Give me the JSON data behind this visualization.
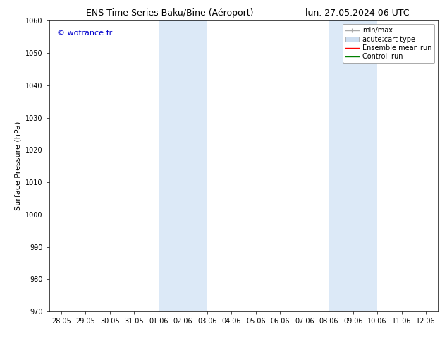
{
  "title_left": "ENS Time Series Baku/Bine (Aéroport)",
  "title_right": "lun. 27.05.2024 06 UTC",
  "ylabel": "Surface Pressure (hPa)",
  "ylim": [
    970,
    1060
  ],
  "yticks": [
    970,
    980,
    990,
    1000,
    1010,
    1020,
    1030,
    1040,
    1050,
    1060
  ],
  "xtick_labels": [
    "28.05",
    "29.05",
    "30.05",
    "31.05",
    "01.06",
    "02.06",
    "03.06",
    "04.06",
    "05.06",
    "06.06",
    "07.06",
    "08.06",
    "09.06",
    "10.06",
    "11.06",
    "12.06"
  ],
  "shaded_regions": [
    {
      "x_start": "01.06",
      "x_end": "03.06",
      "color": "#dce9f7"
    },
    {
      "x_start": "08.06",
      "x_end": "10.06",
      "color": "#dce9f7"
    }
  ],
  "watermark": "© wofrance.fr",
  "watermark_color": "#0000cc",
  "legend_entries": [
    {
      "label": "min/max",
      "color": "#aaaaaa",
      "lw": 1.0,
      "style": "line_with_caps"
    },
    {
      "label": "acute;cart type",
      "color": "#ccddf0",
      "lw": 6,
      "style": "block"
    },
    {
      "label": "Ensemble mean run",
      "color": "red",
      "lw": 1.0,
      "style": "line"
    },
    {
      "label": "Controll run",
      "color": "green",
      "lw": 1.0,
      "style": "line"
    }
  ],
  "bg_color": "#ffffff",
  "plot_bg_color": "#ffffff",
  "grid_color": "#cccccc",
  "spine_color": "#000000",
  "title_fontsize": 9,
  "label_fontsize": 8,
  "tick_fontsize": 7,
  "watermark_fontsize": 8,
  "legend_fontsize": 7
}
